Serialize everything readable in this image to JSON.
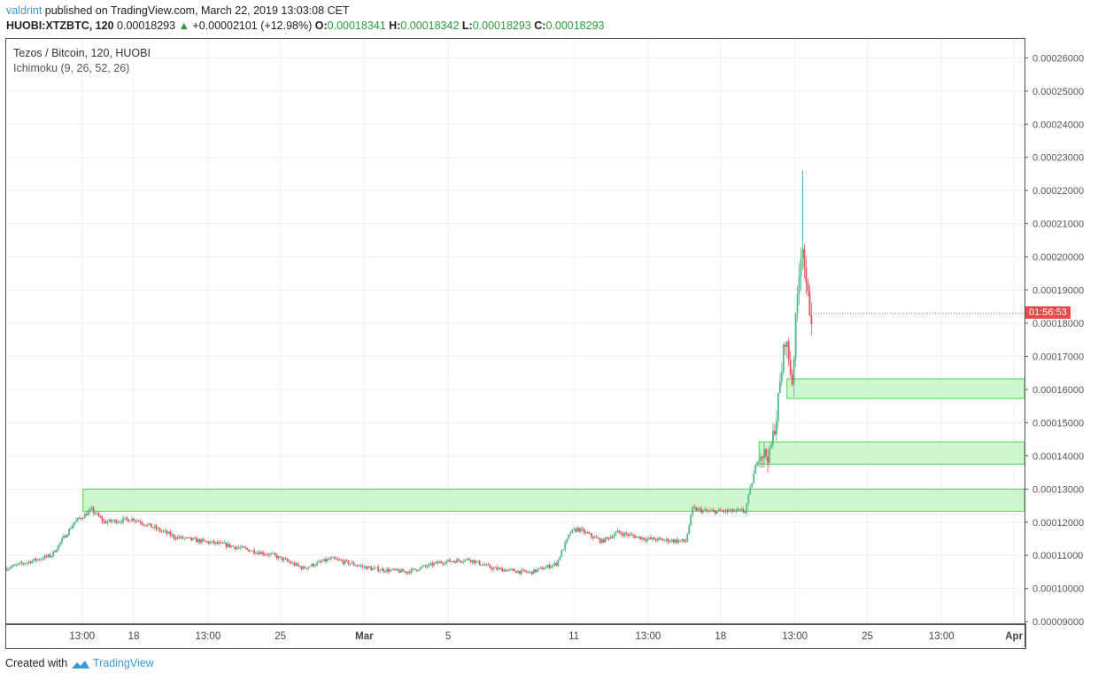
{
  "header": {
    "user": "valdrint",
    "published": " published on TradingView.com, March 22, 2019 13:03:08 CET",
    "symbol": "HUOBI:XTZBTC, 120",
    "last": "0.00018293",
    "change": "+0.00002101 (+12.98%)",
    "o_label": "O:",
    "o": "0.00018341",
    "h_label": "H:",
    "h": "0.00018342",
    "l_label": "L:",
    "l": "0.00018293",
    "c_label": "C:",
    "c": "0.00018293"
  },
  "legend": {
    "title": "Tezos / Bitcoin, 120, HUOBI",
    "indicator": "Ichimoku (9, 26, 52, 26)"
  },
  "countdown": "01:56:53",
  "footer": {
    "created": "Created with",
    "brand": "TradingView"
  },
  "colors": {
    "up": "#53b987",
    "down": "#eb4d5c",
    "zone_fill": "#c8f5c8",
    "zone_border": "#4cd64c",
    "countdown": "#e54b4b"
  },
  "chart_data": {
    "type": "candlestick",
    "interval": "120 minutes",
    "ylim": [
      8.95e-05,
      0.0002657
    ],
    "xlim": [
      "2019-02-11 22:00",
      "2019-04-01 12:00"
    ],
    "y_ticks": [
      "0.00026000",
      "0.00025000",
      "0.00024000",
      "0.00023000",
      "0.00022000",
      "0.00021000",
      "0.00020000",
      "0.00019000",
      "0.00018000",
      "0.00017000",
      "0.00016000",
      "0.00015000",
      "0.00014000",
      "0.00013000",
      "0.00012000",
      "0.00011000",
      "0.00010000",
      "0.00009000"
    ],
    "x_ticks": [
      {
        "label": "13:00",
        "t": "2019-02-15 13:00"
      },
      {
        "label": "18",
        "t": "2019-02-18 00:00"
      },
      {
        "label": "13:00",
        "t": "2019-02-21 13:00"
      },
      {
        "label": "25",
        "t": "2019-02-25 00:00"
      },
      {
        "label": "Mar",
        "t": "2019-03-01 00:00"
      },
      {
        "label": "5",
        "t": "2019-03-05 00:00"
      },
      {
        "label": "11",
        "t": "2019-03-11 00:00"
      },
      {
        "label": "13:00",
        "t": "2019-03-14 13:00"
      },
      {
        "label": "18",
        "t": "2019-03-18 00:00"
      },
      {
        "label": "13:00",
        "t": "2019-03-21 13:00"
      },
      {
        "label": "25",
        "t": "2019-03-25 00:00"
      },
      {
        "label": "13:00",
        "t": "2019-03-28 13:00"
      },
      {
        "label": "Apr",
        "t": "2019-04-01 00:00"
      }
    ],
    "price_path": [
      [
        "2019-02-11 22:00",
        0.0001061
      ],
      [
        "2019-02-14 02:00",
        0.00011
      ],
      [
        "2019-02-15 04:00",
        0.00012
      ],
      [
        "2019-02-16 00:00",
        0.0001237
      ],
      [
        "2019-02-16 14:00",
        0.00012
      ],
      [
        "2019-02-18 00:00",
        0.000121
      ],
      [
        "2019-02-20 00:00",
        0.0001155
      ],
      [
        "2019-02-22 12:00",
        0.000113
      ],
      [
        "2019-02-24 16:00",
        0.00011
      ],
      [
        "2019-02-26 02:00",
        0.0001061
      ],
      [
        "2019-02-27 10:00",
        0.000109
      ],
      [
        "2019-03-01 08:00",
        0.000106
      ],
      [
        "2019-03-03 00:00",
        0.000105
      ],
      [
        "2019-03-04 16:00",
        0.000108
      ],
      [
        "2019-03-06 00:00",
        0.0001088
      ],
      [
        "2019-03-07 04:00",
        0.000106
      ],
      [
        "2019-03-08 22:00",
        0.0001048
      ],
      [
        "2019-03-10 04:00",
        0.0001075
      ],
      [
        "2019-03-10 20:00",
        0.0001169
      ],
      [
        "2019-03-11 04:00",
        0.000118
      ],
      [
        "2019-03-12 08:00",
        0.0001142
      ],
      [
        "2019-03-13 02:00",
        0.0001169
      ],
      [
        "2019-03-14 10:00",
        0.000115
      ],
      [
        "2019-03-16 08:00",
        0.0001142
      ],
      [
        "2019-03-16 16:00",
        0.000124
      ],
      [
        "2019-03-17 08:00",
        0.0001233
      ],
      [
        "2019-03-19 04:00",
        0.0001233
      ],
      [
        "2019-03-19 20:00",
        0.000141
      ],
      [
        "2019-03-20 08:00",
        0.00014
      ],
      [
        "2019-03-20 16:00",
        0.000152
      ],
      [
        "2019-03-21 02:00",
        0.0001758
      ],
      [
        "2019-03-21 10:00",
        0.0001624
      ],
      [
        "2019-03-21 18:00",
        0.000197
      ],
      [
        "2019-03-21 22:00",
        0.0002053
      ],
      [
        "2019-03-22 02:00",
        0.0001892
      ],
      [
        "2019-03-22 08:00",
        0.00018293
      ]
    ],
    "peak_high": 0.000226,
    "zones": [
      {
        "from": "2019-02-15 14:00",
        "top": 0.00013,
        "bottom": 0.0001233
      },
      {
        "from": "2019-03-19 20:00",
        "top": 0.0001442,
        "bottom": 0.0001375
      },
      {
        "from": "2019-03-21 04:00",
        "top": 0.0001632,
        "bottom": 0.0001573
      }
    ]
  }
}
